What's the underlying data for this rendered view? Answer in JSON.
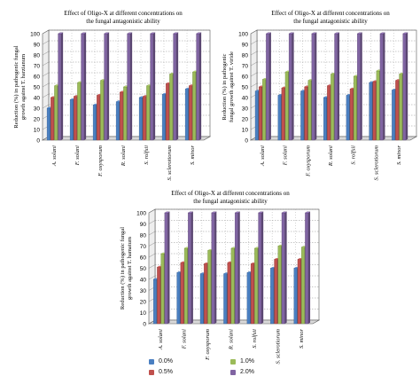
{
  "chart_data": [
    {
      "type": "bar",
      "title": "Effect of Oligo-X at different concentrations on the fungal antagonistic ability",
      "title_lines": [
        "Effect of Oligo-X at different concentrations on",
        "the fungal antagonistic ability"
      ],
      "ylabel_lines": [
        "Reduction (%) in pathogenic fungal",
        "growth against T. harzianum"
      ],
      "categories": [
        "A. solani",
        "F. solani",
        "F. oxysporum",
        "R. solani",
        "S. rolfsii",
        "S. sclerotiorum",
        "S. minor"
      ],
      "ylim": [
        0,
        100
      ],
      "yticks": [
        0,
        10,
        20,
        30,
        40,
        50,
        60,
        70,
        80,
        90,
        100
      ],
      "series": [
        {
          "name": "0.0%",
          "values": [
            30,
            38,
            33,
            36,
            40,
            43,
            48
          ]
        },
        {
          "name": "0.5%",
          "values": [
            40,
            41,
            42,
            45,
            41,
            53,
            51
          ]
        },
        {
          "name": "1.0%",
          "values": [
            51,
            54,
            56,
            50,
            51,
            62,
            64
          ]
        },
        {
          "name": "2.0%",
          "values": [
            100,
            100,
            100,
            100,
            100,
            100,
            100
          ]
        }
      ]
    },
    {
      "type": "bar",
      "title": "Effect of Oligo-X at different concentrations on the fungal antagonistic ability",
      "title_lines": [
        "Effect of Oligo-X at different concentrations on",
        "the fungal antagonistic ability"
      ],
      "ylabel_lines": [
        "Reduction (%) in pathogenic",
        "fungal growth against T. viride"
      ],
      "categories": [
        "A. solani",
        "F. solani",
        "F. oxysporum",
        "R. solani",
        "S. rolfsii",
        "S. sclerotiorum",
        "S. minor"
      ],
      "ylim": [
        0,
        100
      ],
      "yticks": [
        0,
        10,
        20,
        30,
        40,
        50,
        60,
        70,
        80,
        90,
        100
      ],
      "series": [
        {
          "name": "0.0%",
          "values": [
            46,
            42,
            46,
            40,
            42,
            54,
            47
          ]
        },
        {
          "name": "0.5%",
          "values": [
            50,
            49,
            50,
            51,
            48,
            55,
            56
          ]
        },
        {
          "name": "1.0%",
          "values": [
            57,
            64,
            56,
            62,
            60,
            65,
            62
          ]
        },
        {
          "name": "2.0%",
          "values": [
            100,
            100,
            100,
            100,
            100,
            100,
            100
          ]
        }
      ]
    },
    {
      "type": "bar",
      "title": "Effect of Oligo-X at different concentrations on the fungal antagonistic ability",
      "title_lines": [
        "Effect of Oligo-X at different concentrations on",
        "the fungal antagonistic ability"
      ],
      "ylabel_lines": [
        "Reduction (%) in pathogenic fungal",
        "growth against T. hamatum"
      ],
      "categories": [
        "A. solani",
        "F. solani",
        "F. oxysporum",
        "R. solani",
        "S. rolfsii",
        "S. sclerotiorum",
        "S. minor"
      ],
      "ylim": [
        0,
        100
      ],
      "yticks": [
        0,
        10,
        20,
        30,
        40,
        50,
        60,
        70,
        80,
        90,
        100
      ],
      "series": [
        {
          "name": "0.0%",
          "values": [
            40,
            46,
            45,
            45,
            46,
            50,
            50
          ]
        },
        {
          "name": "0.5%",
          "values": [
            51,
            55,
            54,
            55,
            54,
            58,
            58
          ]
        },
        {
          "name": "1.0%",
          "values": [
            63,
            68,
            66,
            68,
            68,
            70,
            69
          ]
        },
        {
          "name": "2.0%",
          "values": [
            100,
            100,
            100,
            100,
            100,
            100,
            100
          ]
        }
      ]
    }
  ],
  "legend": {
    "items": [
      {
        "label": "0.0%",
        "color": "#4a7fc1"
      },
      {
        "label": "0.5%",
        "color": "#c0504d"
      },
      {
        "label": "1.0%",
        "color": "#9bbb59"
      },
      {
        "label": "2.0%",
        "color": "#8064a2"
      }
    ]
  }
}
